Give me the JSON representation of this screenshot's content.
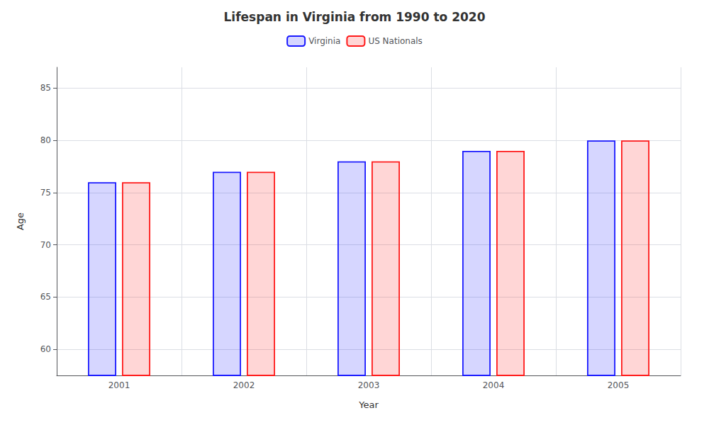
{
  "chart_data": {
    "type": "bar",
    "title": "Lifespan in Virginia from 1990 to 2020",
    "xlabel": "Year",
    "ylabel": "Age",
    "categories": [
      "2001",
      "2002",
      "2003",
      "2004",
      "2005"
    ],
    "series": [
      {
        "name": "Virginia",
        "color": "#1a1aff",
        "values": [
          76,
          77,
          78,
          79,
          80
        ]
      },
      {
        "name": "US Nationals",
        "color": "#ff1a1a",
        "values": [
          76,
          77,
          78,
          79,
          80
        ]
      }
    ],
    "ylim": [
      57.5,
      87
    ],
    "yticks": [
      60,
      65,
      70,
      75,
      80,
      85
    ],
    "grid": true,
    "legend": "top"
  }
}
